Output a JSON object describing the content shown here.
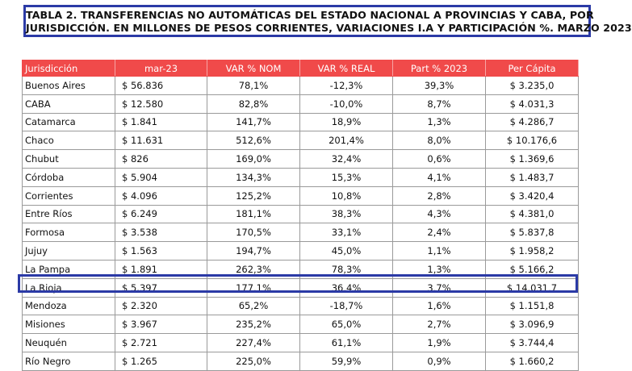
{
  "title": {
    "line1": "TABLA 2. TRANSFERENCIAS NO AUTOMÁTICAS DEL ESTADO NACIONAL A PROVINCIAS Y CABA, POR",
    "line2": "JURISDICCIÓN. EN MILLONES DE PESOS CORRIENTES, VARIACIONES I.A Y PARTICIPACIÓN %. MARZO 2023"
  },
  "table": {
    "headers": [
      "Jurisdicción",
      "mar-23",
      "VAR % NOM",
      "VAR % REAL",
      "Part % 2023",
      "Per Cápita"
    ],
    "rows": [
      [
        "Buenos Aires",
        "$ 56.836",
        "78,1%",
        "-12,3%",
        "39,3%",
        "$ 3.235,0"
      ],
      [
        "CABA",
        "$ 12.580",
        "82,8%",
        "-10,0%",
        "8,7%",
        "$ 4.031,3"
      ],
      [
        "Catamarca",
        "$ 1.841",
        "141,7%",
        "18,9%",
        "1,3%",
        "$ 4.286,7"
      ],
      [
        "Chaco",
        "$ 11.631",
        "512,6%",
        "201,4%",
        "8,0%",
        "$ 10.176,6"
      ],
      [
        "Chubut",
        "$ 826",
        "169,0%",
        "32,4%",
        "0,6%",
        "$ 1.369,6"
      ],
      [
        "Córdoba",
        "$ 5.904",
        "134,3%",
        "15,3%",
        "4,1%",
        "$ 1.483,7"
      ],
      [
        "Corrientes",
        "$ 4.096",
        "125,2%",
        "10,8%",
        "2,8%",
        "$ 3.420,4"
      ],
      [
        "Entre Ríos",
        "$ 6.249",
        "181,1%",
        "38,3%",
        "4,3%",
        "$ 4.381,0"
      ],
      [
        "Formosa",
        "$ 3.538",
        "170,5%",
        "33,1%",
        "2,4%",
        "$ 5.837,8"
      ],
      [
        "Jujuy",
        "$ 1.563",
        "194,7%",
        "45,0%",
        "1,1%",
        "$ 1.958,2"
      ],
      [
        "La Pampa",
        "$ 1.891",
        "262,3%",
        "78,3%",
        "1,3%",
        "$ 5.166,2"
      ],
      [
        "La Rioja",
        "$ 5.397",
        "177,1%",
        "36,4%",
        "3,7%",
        "$ 14.031,7"
      ],
      [
        "Mendoza",
        "$ 2.320",
        "65,2%",
        "-18,7%",
        "1,6%",
        "$ 1.151,8"
      ],
      [
        "Misiones",
        "$ 3.967",
        "235,2%",
        "65,0%",
        "2,7%",
        "$ 3.096,9"
      ],
      [
        "Neuquén",
        "$ 2.721",
        "227,4%",
        "61,1%",
        "1,9%",
        "$ 3.744,4"
      ],
      [
        "Río Negro",
        "$ 1.265",
        "225,0%",
        "59,9%",
        "0,9%",
        "$ 1.660,2"
      ]
    ]
  },
  "colors": {
    "header_bg": "#f04a4a",
    "highlight_border": "#2b3aa6"
  }
}
